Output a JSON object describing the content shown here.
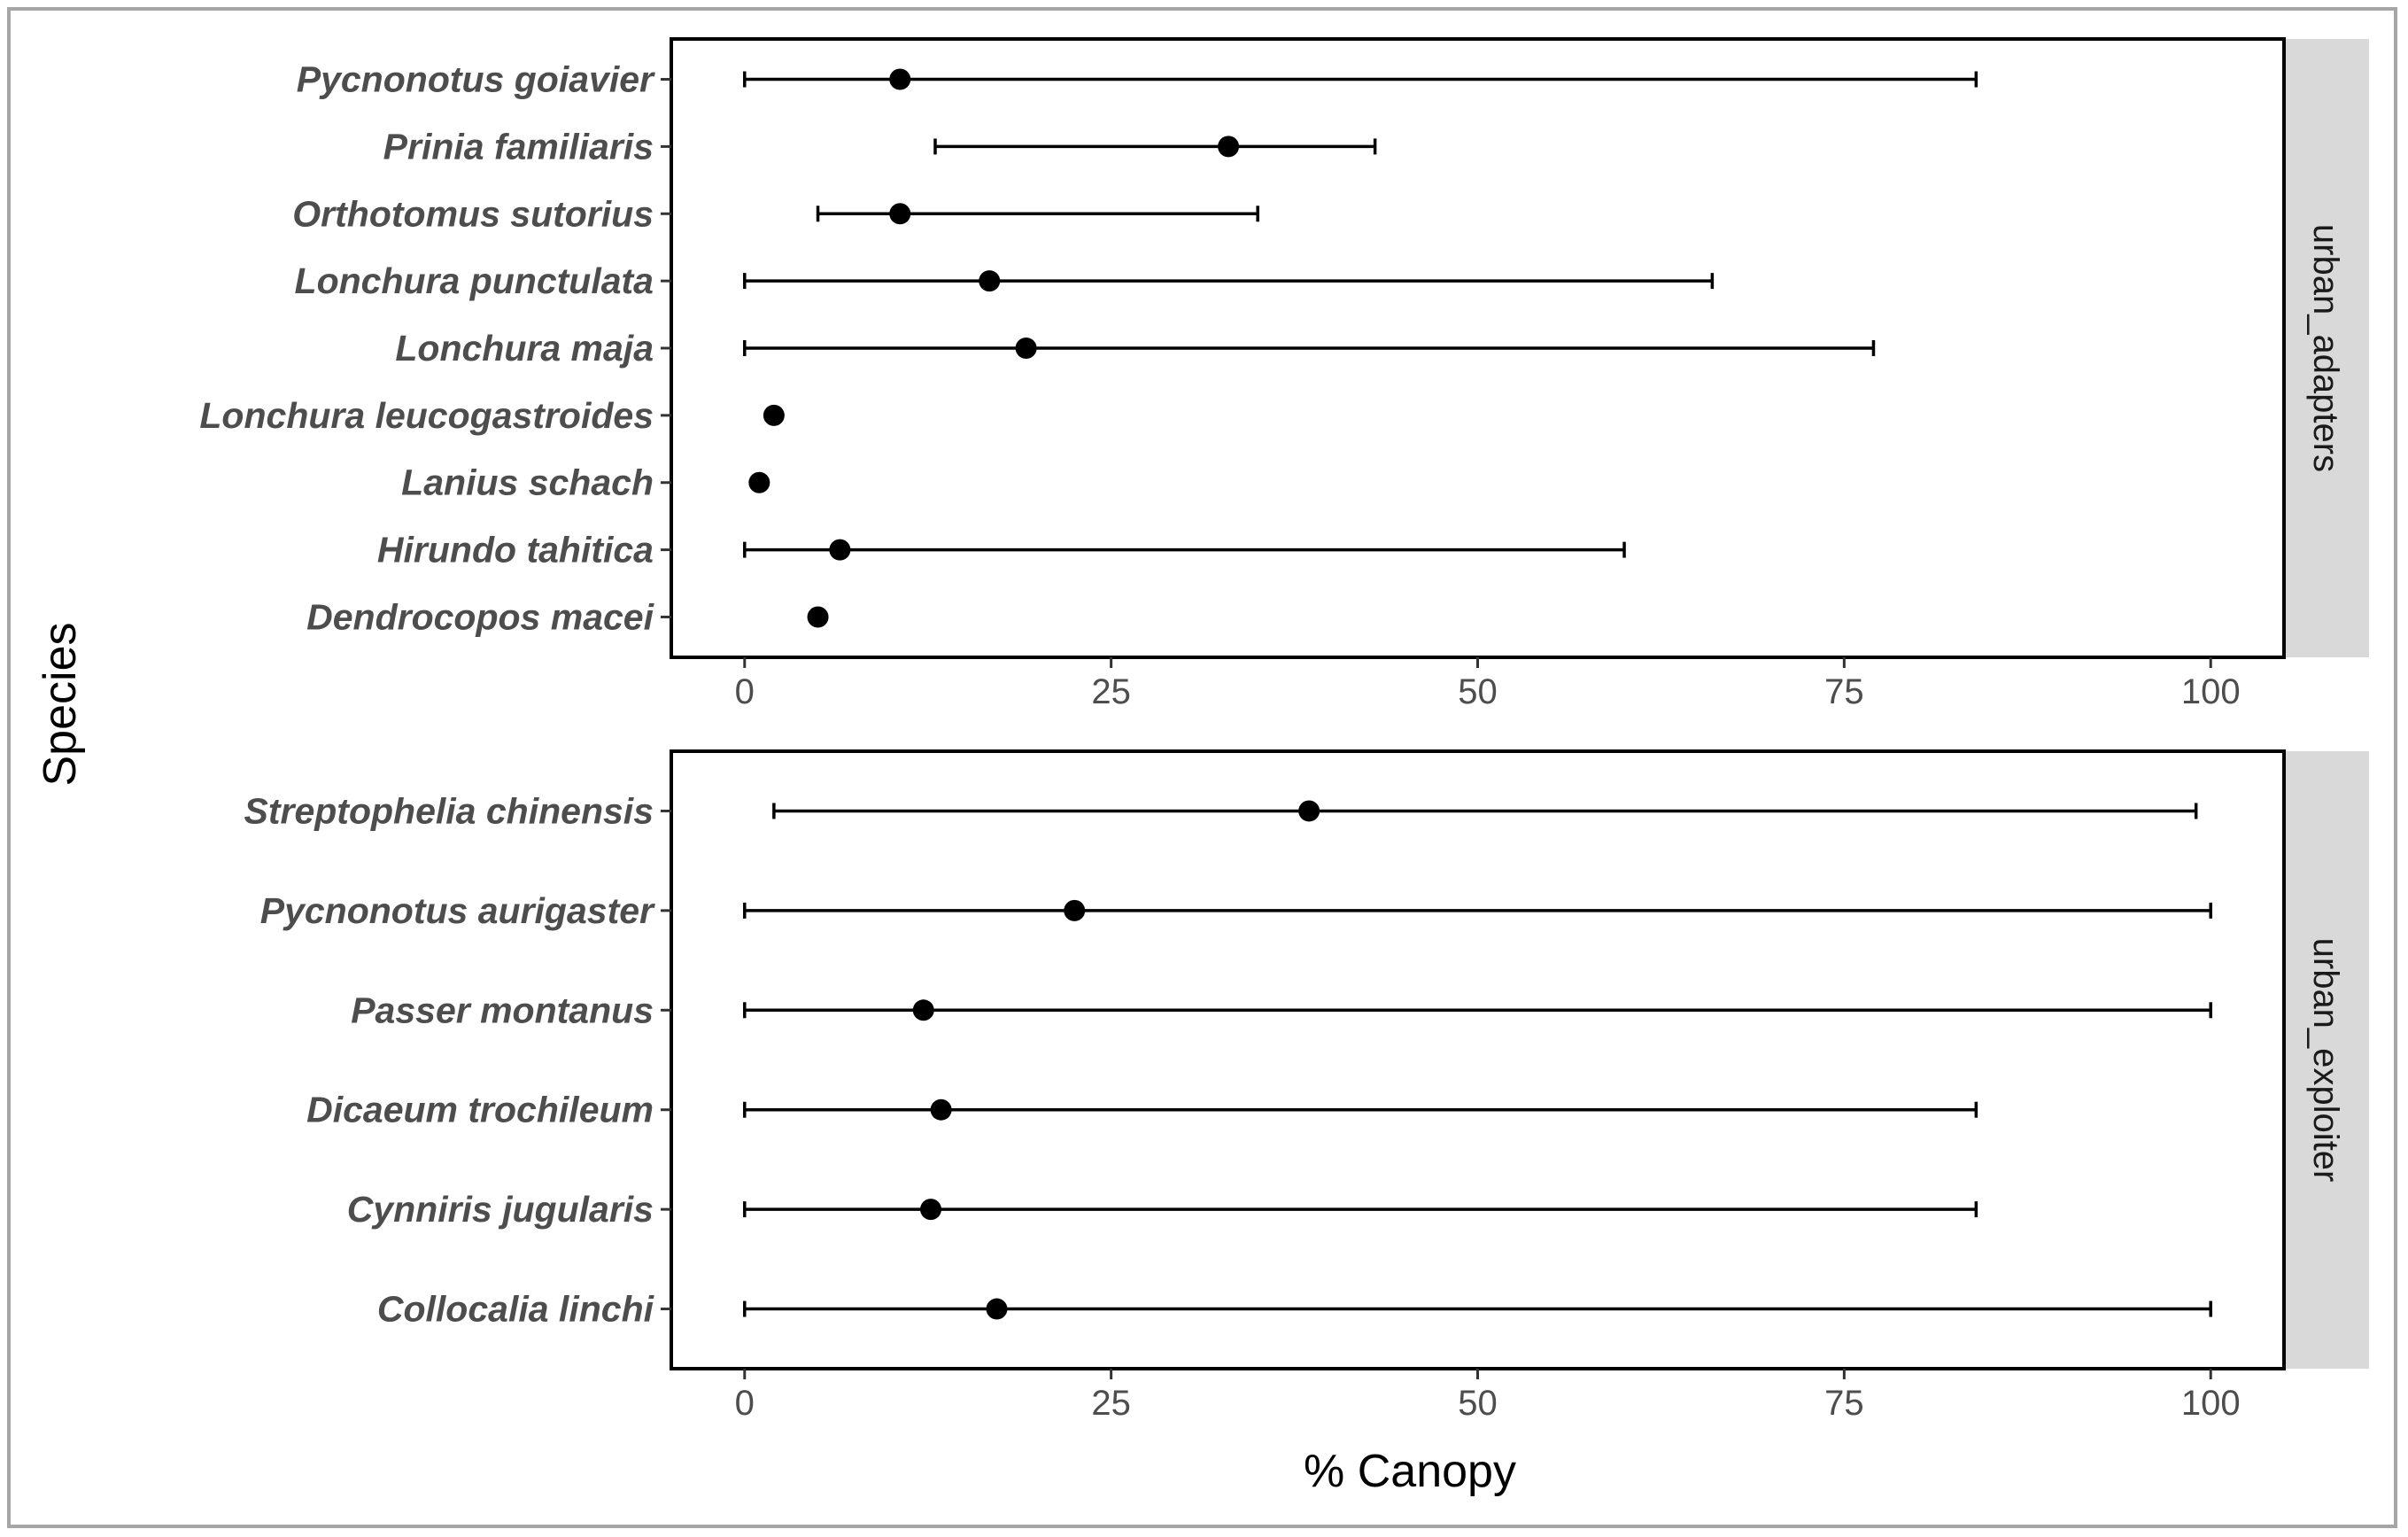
{
  "chart_data": {
    "type": "errorbar",
    "xlabel": "% Canopy",
    "ylabel": "Species",
    "xlim": [
      -5,
      105
    ],
    "xticks": [
      "0",
      "25",
      "50",
      "75",
      "100"
    ],
    "grid": false,
    "panels": [
      {
        "name": "urban_adapters",
        "points": [
          {
            "species": "Pycnonotus goiavier",
            "mean": 10.6,
            "low": 0,
            "high": 84
          },
          {
            "species": "Prinia familiaris",
            "mean": 33,
            "low": 13,
            "high": 43
          },
          {
            "species": "Orthotomus sutorius",
            "mean": 10.6,
            "low": 5,
            "high": 35
          },
          {
            "species": "Lonchura punctulata",
            "mean": 16.7,
            "low": 0,
            "high": 66
          },
          {
            "species": "Lonchura maja",
            "mean": 19.2,
            "low": 0,
            "high": 77
          },
          {
            "species": "Lonchura leucogastroides",
            "mean": 2
          },
          {
            "species": "Lanius schach",
            "mean": 1
          },
          {
            "species": "Hirundo tahitica",
            "mean": 6.5,
            "low": 0,
            "high": 60
          },
          {
            "species": "Dendrocopos macei",
            "mean": 5
          }
        ]
      },
      {
        "name": "urban_exploiter",
        "points": [
          {
            "species": "Streptophelia chinensis",
            "mean": 38.5,
            "low": 2,
            "high": 99
          },
          {
            "species": "Pycnonotus aurigaster",
            "mean": 22.5,
            "low": 0,
            "high": 100
          },
          {
            "species": "Passer montanus",
            "mean": 12.2,
            "low": 0,
            "high": 100
          },
          {
            "species": "Dicaeum trochileum",
            "mean": 13.4,
            "low": 0,
            "high": 84
          },
          {
            "species": "Cynniris jugularis",
            "mean": 12.7,
            "low": 0,
            "high": 84
          },
          {
            "species": "Collocalia linchi",
            "mean": 17.2,
            "low": 0,
            "high": 100
          }
        ]
      }
    ]
  }
}
